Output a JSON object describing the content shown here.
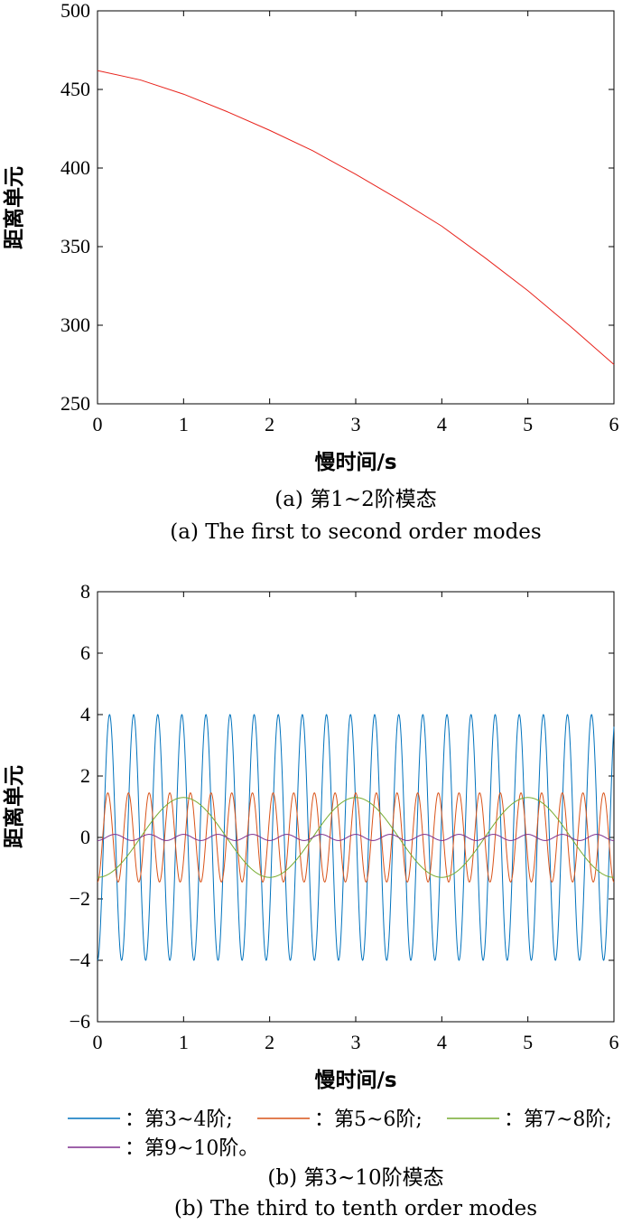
{
  "chart_data": [
    {
      "type": "line",
      "xlabel": "慢时间/s",
      "ylabel": "距离单元",
      "xlim": [
        0,
        6
      ],
      "ylim": [
        250,
        500
      ],
      "xticks": [
        0,
        1,
        2,
        3,
        4,
        5,
        6
      ],
      "yticks": [
        250,
        300,
        350,
        400,
        450,
        500
      ],
      "grid": false,
      "caption_cn": "(a) 第1~2阶模态",
      "caption_en": "(a) The first to second order modes",
      "series": [
        {
          "color": "#e8231c",
          "x": [
            0,
            0.5,
            1,
            1.5,
            2,
            2.5,
            3,
            3.5,
            4,
            4.5,
            5,
            5.5,
            6
          ],
          "y": [
            462,
            456,
            447,
            436,
            424,
            411,
            396,
            380,
            363,
            343,
            322,
            299,
            275
          ]
        }
      ]
    },
    {
      "type": "line",
      "xlabel": "慢时间/s",
      "ylabel": "距离单元",
      "xlim": [
        0,
        6
      ],
      "ylim": [
        -6,
        8
      ],
      "xticks": [
        0,
        1,
        2,
        3,
        4,
        5,
        6
      ],
      "yticks": [
        -6,
        -4,
        -2,
        0,
        2,
        4,
        6,
        8
      ],
      "grid": false,
      "caption_cn": "(b) 第3~10阶模态",
      "caption_en": "(b) The third to tenth order modes",
      "legend_position": "bottom",
      "series": [
        {
          "name": "第3~4阶;",
          "legend_label": "：第3~4阶;",
          "color": "#0072bd",
          "amplitude": 4.0,
          "period": 0.28,
          "phase": -1.5708,
          "offset": 0.0
        },
        {
          "name": "第5~6阶;",
          "legend_label": "：第5~6阶;",
          "color": "#d95319",
          "amplitude": 1.45,
          "period": 0.24,
          "phase": -1.5708,
          "offset": 0.0
        },
        {
          "name": "第7~8阶;",
          "legend_label": "：第7~8阶;",
          "color": "#77ac30",
          "amplitude": 1.3,
          "period": 2.0,
          "phase": -1.5708,
          "offset": 0.0
        },
        {
          "name": "第9~10阶。",
          "legend_label": "：第9~10阶。",
          "color": "#7e2f8e",
          "amplitude": 0.1,
          "period": 0.4,
          "phase": -1.5708,
          "offset": 0.0
        }
      ]
    }
  ]
}
